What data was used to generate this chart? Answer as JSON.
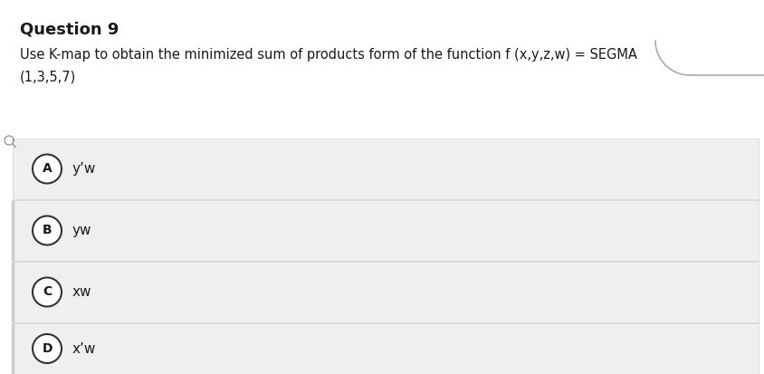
{
  "title": "Question 9",
  "question_text_line1": "Use K-map to obtain the minimized sum of products form of the function f (x,y,z,w) = SEGMA",
  "question_text_line2": "(1,3,5,7)",
  "options": [
    {
      "label": "A",
      "text": "y’w"
    },
    {
      "label": "B",
      "text": "yw"
    },
    {
      "label": "C",
      "text": "xw"
    },
    {
      "label": "D",
      "text": "x’w"
    }
  ],
  "bg_color": "#ffffff",
  "option_bg_color": "#efefef",
  "option_border_color": "#d0d0d0",
  "title_fontsize": 13,
  "question_fontsize": 10.5,
  "option_fontsize": 11,
  "text_color": "#1a1a1a",
  "circle_edge_color": "#333333",
  "circle_face_color": "#ffffff",
  "accent_color": "#bbbbbb",
  "top_right_edge_color": "#aaaaaa"
}
